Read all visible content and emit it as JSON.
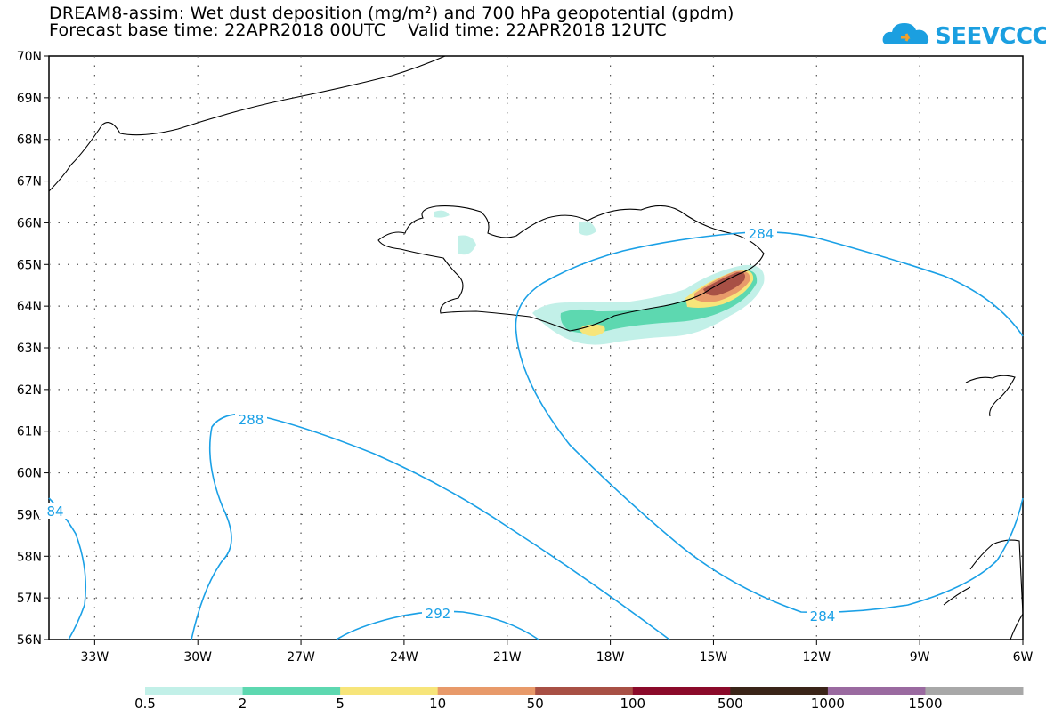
{
  "title": {
    "line1": "DREAM8-assim: Wet dust deposition (mg/m²) and 700 hPa geopotential (gpdm)",
    "line2": "Forecast base time: 22APR2018 00UTC    Valid time: 22APR2018 12UTC"
  },
  "logo": {
    "text": "SEEVCCC",
    "icon": "cloud-arrow-icon",
    "color": "#1b9fe0"
  },
  "map": {
    "lat_labels": [
      "70N",
      "69N",
      "68N",
      "67N",
      "66N",
      "65N",
      "64N",
      "63N",
      "62N",
      "61N",
      "60N",
      "59N",
      "58N",
      "57N",
      "56N"
    ],
    "lon_labels": [
      "33W",
      "30W",
      "27W",
      "24W",
      "21W",
      "18W",
      "15W",
      "12W",
      "9W",
      "6W"
    ],
    "contour_color": "#1aa0e6",
    "contour_labels": [
      "284",
      "288",
      "292",
      "284",
      "84"
    ]
  },
  "legend": {
    "colors": [
      "#c2f0e8",
      "#5dd8b0",
      "#f7e57a",
      "#e89a6a",
      "#a85045",
      "#8b0a2a",
      "#3a2418",
      "#9a6aa0",
      "#a8a8a8"
    ],
    "labels": [
      "0.5",
      "2",
      "5",
      "10",
      "50",
      "100",
      "500",
      "1000",
      "1500"
    ]
  }
}
